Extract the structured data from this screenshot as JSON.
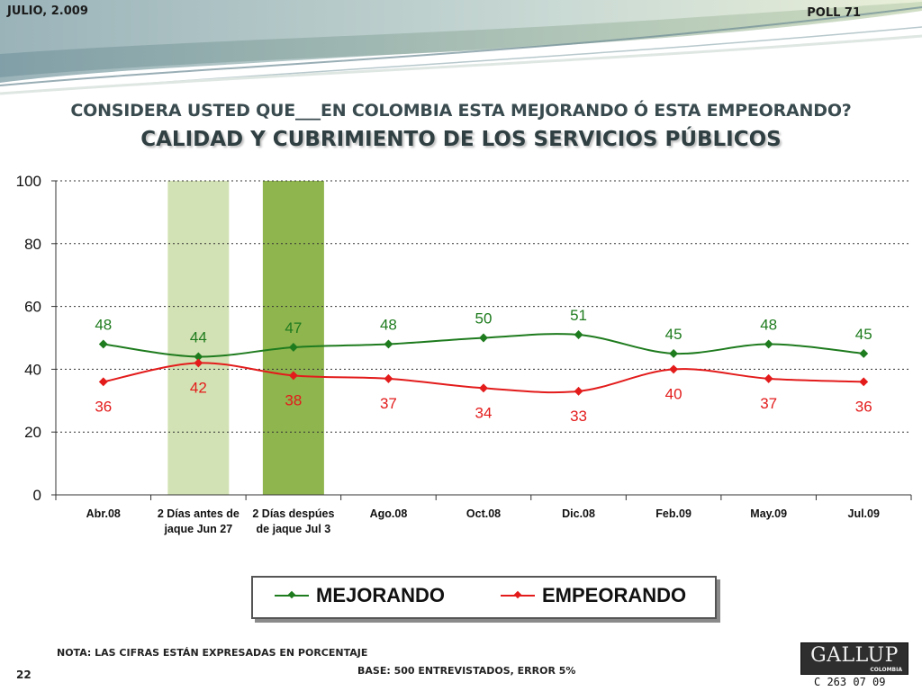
{
  "header": {
    "date": "JULIO, 2.009",
    "poll": "POLL 71"
  },
  "title": {
    "question": "CONSIDERA USTED QUE___EN COLOMBIA ESTA MEJORANDO Ó ESTA EMPEORANDO?",
    "subtitle": "CALIDAD Y CUBRIMIENTO DE LOS SERVICIOS PÚBLICOS"
  },
  "chart_data": {
    "type": "line",
    "categories": [
      [
        "Abr.08"
      ],
      [
        "2 Días antes de",
        "jaque Jun 27"
      ],
      [
        "2 Días despúes",
        "de jaque Jul 3"
      ],
      [
        "Ago.08"
      ],
      [
        "Oct.08"
      ],
      [
        "Dic.08"
      ],
      [
        "Feb.09"
      ],
      [
        "May.09"
      ],
      [
        "Jul.09"
      ]
    ],
    "series": [
      {
        "name": "MEJORANDO",
        "color": "#1e7b1e",
        "values": [
          48,
          44,
          47,
          48,
          50,
          51,
          45,
          48,
          45
        ]
      },
      {
        "name": "EMPEORANDO",
        "color": "#e31b1b",
        "values": [
          36,
          42,
          38,
          37,
          34,
          33,
          40,
          37,
          36
        ]
      }
    ],
    "highlight_bands": [
      {
        "category_index": 1,
        "value": 100,
        "color": "#d3e2b4"
      },
      {
        "category_index": 2,
        "value": 100,
        "color": "#8fb54e"
      }
    ],
    "yticks": [
      0,
      20,
      40,
      60,
      80,
      100
    ],
    "ylim": [
      0,
      100
    ],
    "grid": true,
    "legend_position": "bottom"
  },
  "legend": {
    "items": [
      "MEJORANDO",
      "EMPEORANDO"
    ]
  },
  "footer": {
    "note": "NOTA: LAS CIFRAS ESTÁN EXPRESADAS EN PORCENTAJE",
    "base": "BASE: 500 ENTREVISTADOS, ERROR 5%",
    "page": "22",
    "logo": "GALLUP",
    "logo_sub": "COLOMBIA",
    "code": "C 263 07 09"
  }
}
